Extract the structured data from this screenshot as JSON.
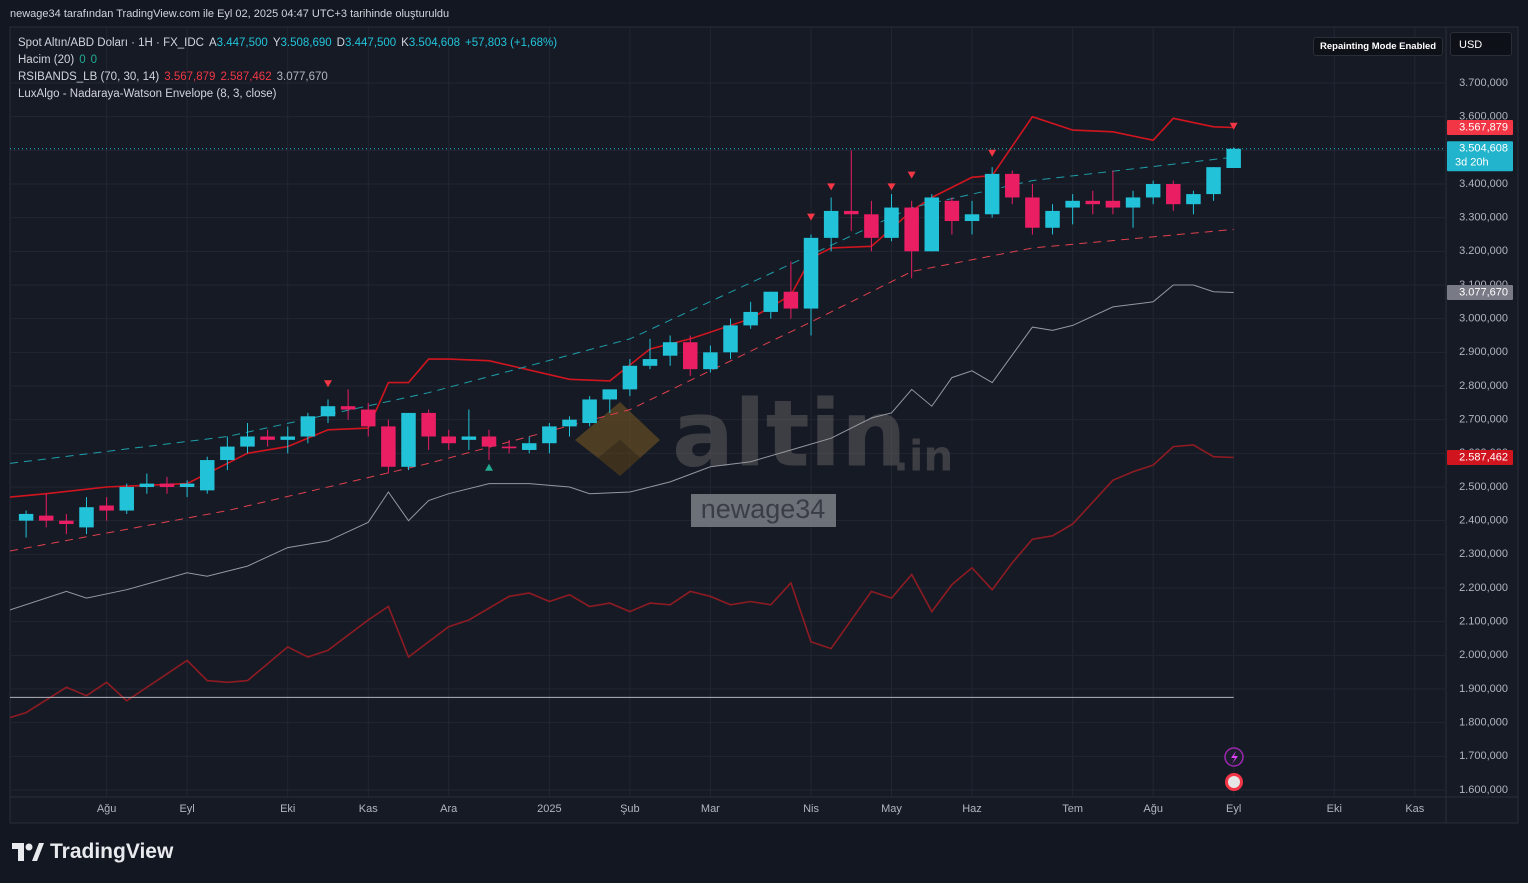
{
  "header": {
    "caption": "newage34 tarafından TradingView.com ile Eyl 02, 2025 04:47 UTC+3 tarihinde oluşturuldu",
    "symbol": "Spot Altın/ABD Doları · 1H · FX_IDC",
    "ohlc": [
      {
        "key": "A",
        "value": "3.447,500"
      },
      {
        "key": "Y",
        "value": "3.508,690"
      },
      {
        "key": "D",
        "value": "3.447,500"
      },
      {
        "key": "K",
        "value": "3.504,608"
      }
    ],
    "change": "+57,803 (+1,68%)",
    "indicators": [
      {
        "name": "Hacim (20)",
        "values": [
          "0",
          "0"
        ]
      },
      {
        "name": "RSIBANDS_LB (70, 30, 14)",
        "values": [
          "3.567,879",
          "2.587,462",
          "3.077,670"
        ]
      },
      {
        "name": "LuxAlgo - Nadaraya-Watson Envelope (8, 3, close)"
      }
    ],
    "badge": "Repainting Mode Enabled",
    "currency": "USD"
  },
  "watermark": {
    "brand": "altin",
    "suffix": ".in",
    "user": "newage34"
  },
  "footer": "TradingView",
  "chart_data": {
    "type": "candlestick",
    "up_color": "#22c3d9",
    "down_color": "#e91e63",
    "grid": true,
    "x": [
      0,
      1,
      2,
      3,
      4,
      5,
      6,
      7,
      8,
      9,
      10,
      11,
      12,
      13,
      14,
      15,
      16,
      17,
      18,
      19,
      20,
      21,
      22,
      23,
      24,
      25,
      26,
      27,
      28,
      29,
      30,
      31,
      32,
      33,
      34,
      35,
      36,
      37,
      38,
      39,
      40,
      41,
      42,
      43,
      44,
      45,
      46,
      47,
      48,
      49,
      50,
      51,
      52,
      53,
      54,
      55,
      56,
      57,
      58,
      59,
      60
    ],
    "open": [
      2400000,
      2415000,
      2400000,
      2380000,
      2445000,
      2430000,
      2500000,
      2510000,
      2500000,
      2490000,
      2580000,
      2620000,
      2650000,
      2640000,
      2650000,
      2710000,
      2740000,
      2730000,
      2680000,
      2560000,
      2720000,
      2650000,
      2640000,
      2650000,
      2620000,
      2610000,
      2630000,
      2680000,
      2690000,
      2760000,
      2790000,
      2860000,
      2890000,
      2930000,
      2850000,
      2900000,
      2980000,
      3020000,
      3080000,
      3030000,
      3240000,
      3320000,
      3310000,
      3240000,
      3330000,
      3200000,
      3350000,
      3290000,
      3310000,
      3430000,
      3360000,
      3270000,
      3330000,
      3350000,
      3350000,
      3330000,
      3360000,
      3400000,
      3340000,
      3370000,
      3447500
    ],
    "high": [
      2430000,
      2480000,
      2420000,
      2470000,
      2470000,
      2510000,
      2540000,
      2530000,
      2520000,
      2590000,
      2650000,
      2690000,
      2670000,
      2680000,
      2720000,
      2760000,
      2790000,
      2750000,
      2700000,
      2720000,
      2730000,
      2670000,
      2730000,
      2670000,
      2640000,
      2650000,
      2690000,
      2710000,
      2770000,
      2790000,
      2880000,
      2940000,
      2950000,
      2950000,
      2920000,
      3000000,
      3050000,
      3080000,
      3170000,
      3250000,
      3360000,
      3500000,
      3350000,
      3370000,
      3350000,
      3370000,
      3360000,
      3350000,
      3450000,
      3440000,
      3400000,
      3340000,
      3370000,
      3380000,
      3440000,
      3380000,
      3410000,
      3410000,
      3380000,
      3450000,
      3508690
    ],
    "low": [
      2350000,
      2380000,
      2360000,
      2360000,
      2400000,
      2420000,
      2480000,
      2480000,
      2470000,
      2480000,
      2550000,
      2600000,
      2620000,
      2600000,
      2630000,
      2690000,
      2700000,
      2650000,
      2540000,
      2550000,
      2610000,
      2610000,
      2610000,
      2580000,
      2600000,
      2600000,
      2600000,
      2650000,
      2680000,
      2720000,
      2770000,
      2850000,
      2860000,
      2830000,
      2840000,
      2880000,
      2970000,
      3000000,
      3000000,
      2950000,
      3200000,
      3260000,
      3200000,
      3230000,
      3120000,
      3200000,
      3250000,
      3250000,
      3300000,
      3340000,
      3250000,
      3250000,
      3280000,
      3310000,
      3310000,
      3270000,
      3340000,
      3320000,
      3310000,
      3350000,
      3447500
    ],
    "close": [
      2420000,
      2400000,
      2390000,
      2440000,
      2430000,
      2500000,
      2510000,
      2500000,
      2510000,
      2580000,
      2620000,
      2650000,
      2640000,
      2650000,
      2710000,
      2740000,
      2730000,
      2680000,
      2560000,
      2720000,
      2650000,
      2630000,
      2650000,
      2620000,
      2615000,
      2630000,
      2680000,
      2700000,
      2760000,
      2790000,
      2860000,
      2880000,
      2930000,
      2850000,
      2900000,
      2980000,
      3020000,
      3080000,
      3030000,
      3240000,
      3320000,
      3310000,
      3240000,
      3330000,
      3200000,
      3360000,
      3290000,
      3310000,
      3430000,
      3360000,
      3270000,
      3320000,
      3350000,
      3340000,
      3330000,
      3360000,
      3400000,
      3340000,
      3370000,
      3450000,
      3504608
    ],
    "series": [
      {
        "color": "#d1151f",
        "width": 1.6,
        "dashed": false,
        "x": [
          -0.8,
          1,
          4,
          8,
          11,
          13,
          15,
          17,
          18,
          19,
          20,
          21,
          23,
          27,
          29,
          31,
          33,
          36,
          38,
          39,
          40,
          42,
          44,
          45,
          47,
          48,
          50,
          52,
          54,
          56,
          57,
          59,
          60
        ],
        "values": [
          2470000,
          2480000,
          2500000,
          2510000,
          2600000,
          2620000,
          2670000,
          2675000,
          2810000,
          2810000,
          2880000,
          2880000,
          2875000,
          2820000,
          2815000,
          2910000,
          2940000,
          3000000,
          3070000,
          3180000,
          3210000,
          3215000,
          3320000,
          3360000,
          3420000,
          3425000,
          3600000,
          3560000,
          3555000,
          3530000,
          3595000,
          3570000,
          3567879
        ]
      },
      {
        "color": "#9598a1",
        "width": 1,
        "dashed": false,
        "x": [
          -0.8,
          2,
          3,
          5,
          8,
          9,
          11,
          13,
          15,
          17,
          18,
          19,
          20,
          21,
          23,
          25,
          27,
          28,
          30,
          32,
          34,
          36,
          38,
          40,
          42,
          43,
          44,
          45,
          46,
          47,
          48,
          50,
          51,
          52,
          54,
          56,
          57,
          58,
          59,
          60
        ],
        "values": [
          2135000,
          2190000,
          2170000,
          2195000,
          2245000,
          2235000,
          2265000,
          2320000,
          2340000,
          2395000,
          2485000,
          2400000,
          2460000,
          2480000,
          2510000,
          2510000,
          2500000,
          2480000,
          2485000,
          2515000,
          2560000,
          2575000,
          2610000,
          2645000,
          2705000,
          2720000,
          2790000,
          2740000,
          2825000,
          2845000,
          2810000,
          2975000,
          2965000,
          2980000,
          3035000,
          3050000,
          3100000,
          3100000,
          3080000,
          3077670
        ]
      },
      {
        "color": "#8e1b22",
        "width": 1.6,
        "dashed": false,
        "x": [
          -0.8,
          0,
          2,
          3,
          4,
          5,
          8,
          9,
          10,
          11,
          13,
          14,
          15,
          17,
          18,
          19,
          21,
          22,
          24,
          25,
          26,
          27,
          28,
          29,
          30,
          31,
          32,
          33,
          34,
          35,
          36,
          37,
          38,
          39,
          40,
          42,
          43,
          44,
          45,
          46,
          47,
          48,
          49,
          50,
          51,
          52,
          54,
          55,
          56,
          57,
          58,
          59,
          60
        ],
        "values": [
          1815000,
          1830000,
          1905000,
          1880000,
          1920000,
          1865000,
          1985000,
          1925000,
          1920000,
          1925000,
          2025000,
          1995000,
          2015000,
          2105000,
          2145000,
          1995000,
          2085000,
          2105000,
          2175000,
          2185000,
          2160000,
          2180000,
          2145000,
          2155000,
          2130000,
          2155000,
          2150000,
          2190000,
          2175000,
          2150000,
          2160000,
          2150000,
          2215000,
          2040000,
          2020000,
          2190000,
          2170000,
          2240000,
          2130000,
          2210000,
          2260000,
          2195000,
          2275000,
          2345000,
          2355000,
          2390000,
          2520000,
          2545000,
          2565000,
          2620000,
          2625000,
          2590000,
          2587462
        ]
      },
      {
        "color": "#1e9ea8",
        "width": 1,
        "dashed": true,
        "x": [
          -0.8,
          10,
          20,
          30,
          39,
          44,
          50,
          60
        ],
        "values": [
          2570000,
          2650000,
          2780000,
          2940000,
          3190000,
          3330000,
          3410000,
          3480000
        ]
      },
      {
        "color": "#e0404d",
        "width": 1,
        "dashed": true,
        "x": [
          -0.8,
          10,
          20,
          30,
          39,
          44,
          50,
          60
        ],
        "values": [
          2310000,
          2430000,
          2570000,
          2730000,
          2990000,
          3140000,
          3210000,
          3265000
        ]
      },
      {
        "color": "#b2b5be",
        "width": 1,
        "dashed": false,
        "x": [
          -0.8,
          60
        ],
        "values": [
          1875000,
          1875000
        ]
      }
    ],
    "signals": [
      {
        "x": 15,
        "value": 2805000,
        "direction": "down",
        "color": "#f23645"
      },
      {
        "x": 39,
        "value": 3300000,
        "direction": "down",
        "color": "#f23645"
      },
      {
        "x": 40,
        "value": 3390000,
        "direction": "down",
        "color": "#f23645"
      },
      {
        "x": 43,
        "value": 3390000,
        "direction": "down",
        "color": "#f23645"
      },
      {
        "x": 44,
        "value": 3425000,
        "direction": "down",
        "color": "#f23645"
      },
      {
        "x": 48,
        "value": 3490000,
        "direction": "down",
        "color": "#f23645"
      },
      {
        "x": 60,
        "value": 3570000,
        "direction": "down",
        "color": "#f23645"
      },
      {
        "x": 23,
        "value": 2560000,
        "direction": "up",
        "color": "#22ab94"
      }
    ],
    "last_price": {
      "value": 3504608,
      "color": "#22c3d9"
    },
    "price_tags": [
      {
        "value": 3567879,
        "label": "3.567,879",
        "color": "#f23645"
      },
      {
        "value": 3504608,
        "label": "3.504,608",
        "sublabel": "3d 20h",
        "color": "#22b4cc"
      },
      {
        "value": 3077670,
        "label": "3.077,670",
        "color": "#787b86"
      },
      {
        "value": 2587462,
        "label": "2.587,462",
        "color": "#d1151f"
      }
    ],
    "xlim": [
      -0.8,
      70.55
    ],
    "ylim": [
      1579200,
      3866300
    ],
    "xticks": [
      {
        "value": 4,
        "label": "Ağu"
      },
      {
        "value": 8,
        "label": "Eyl"
      },
      {
        "value": 13,
        "label": "Eki"
      },
      {
        "value": 17,
        "label": "Kas"
      },
      {
        "value": 21,
        "label": "Ara"
      },
      {
        "value": 26,
        "label": "2025"
      },
      {
        "value": 30,
        "label": "Şub"
      },
      {
        "value": 34,
        "label": "Mar"
      },
      {
        "value": 39,
        "label": "Nis"
      },
      {
        "value": 43,
        "label": "May"
      },
      {
        "value": 47,
        "label": "Haz"
      },
      {
        "value": 52,
        "label": "Tem"
      },
      {
        "value": 56,
        "label": "Ağu"
      },
      {
        "value": 60,
        "label": "Eyl"
      },
      {
        "value": 65,
        "label": "Eki"
      },
      {
        "value": 69,
        "label": "Kas"
      }
    ],
    "yticks": [
      {
        "value": 1600000,
        "label": "1.600,000"
      },
      {
        "value": 1700000,
        "label": "1.700,000"
      },
      {
        "value": 1800000,
        "label": "1.800,000"
      },
      {
        "value": 1900000,
        "label": "1.900,000"
      },
      {
        "value": 2000000,
        "label": "2.000,000"
      },
      {
        "value": 2100000,
        "label": "2.100,000"
      },
      {
        "value": 2200000,
        "label": "2.200,000"
      },
      {
        "value": 2300000,
        "label": "2.300,000"
      },
      {
        "value": 2400000,
        "label": "2.400,000"
      },
      {
        "value": 2500000,
        "label": "2.500,000"
      },
      {
        "value": 2600000,
        "label": "2.600,000"
      },
      {
        "value": 2700000,
        "label": "2.700,000"
      },
      {
        "value": 2800000,
        "label": "2.800,000"
      },
      {
        "value": 2900000,
        "label": "2.900,000"
      },
      {
        "value": 3000000,
        "label": "3.000,000"
      },
      {
        "value": 3100000,
        "label": "3.100,000"
      },
      {
        "value": 3200000,
        "label": "3.200,000"
      },
      {
        "value": 3300000,
        "label": "3.300,000"
      },
      {
        "value": 3400000,
        "label": "3.400,000"
      },
      {
        "value": 3500000,
        "label": "3.500,000"
      },
      {
        "value": 3600000,
        "label": "3.600,000"
      },
      {
        "value": 3700000,
        "label": "3.700,000"
      }
    ]
  }
}
